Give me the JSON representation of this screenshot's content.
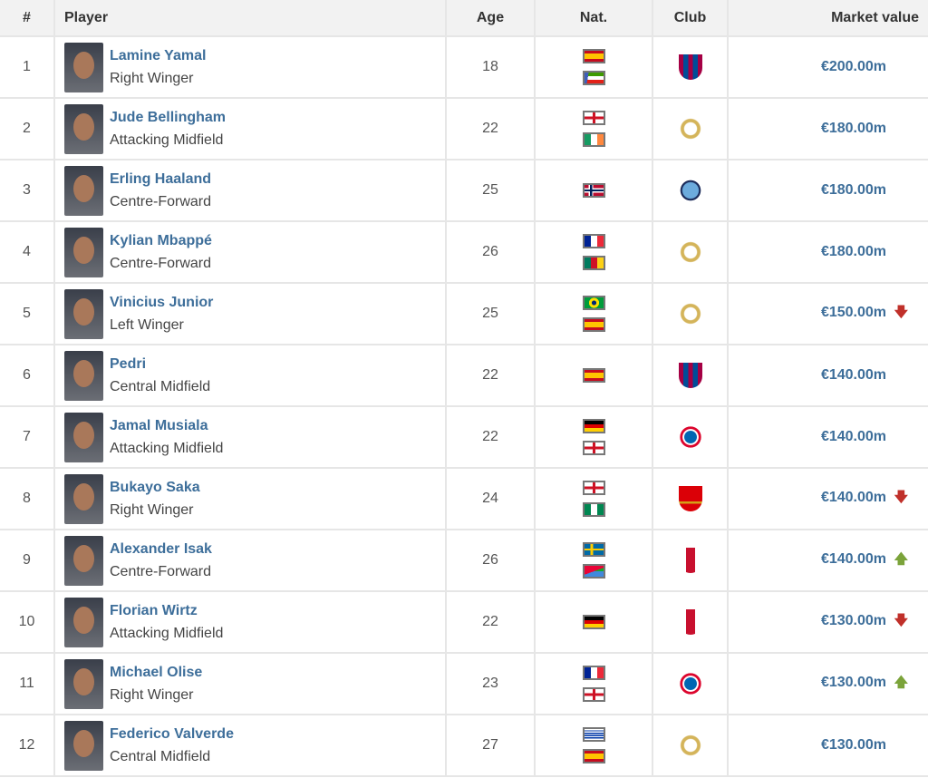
{
  "headers": {
    "rank": "#",
    "player": "Player",
    "age": "Age",
    "nat": "Nat.",
    "club": "Club",
    "value": "Market value"
  },
  "colors": {
    "link": "#3d6e9a",
    "down": "#c0302a",
    "up": "#7ba33a"
  },
  "rows": [
    {
      "rank": "1",
      "name": "Lamine Yamal",
      "position": "Right Winger",
      "age": "18",
      "nat": [
        "spain",
        "equatorial-guinea"
      ],
      "club": "fc-barcelona",
      "value": "€200.00m",
      "trend": ""
    },
    {
      "rank": "2",
      "name": "Jude Bellingham",
      "position": "Attacking Midfield",
      "age": "22",
      "nat": [
        "england",
        "ireland"
      ],
      "club": "real-madrid",
      "value": "€180.00m",
      "trend": ""
    },
    {
      "rank": "3",
      "name": "Erling Haaland",
      "position": "Centre-Forward",
      "age": "25",
      "nat": [
        "norway"
      ],
      "club": "manchester-city",
      "value": "€180.00m",
      "trend": ""
    },
    {
      "rank": "4",
      "name": "Kylian Mbappé",
      "position": "Centre-Forward",
      "age": "26",
      "nat": [
        "france",
        "cameroon"
      ],
      "club": "real-madrid",
      "value": "€180.00m",
      "trend": ""
    },
    {
      "rank": "5",
      "name": "Vinicius Junior",
      "position": "Left Winger",
      "age": "25",
      "nat": [
        "brazil",
        "spain"
      ],
      "club": "real-madrid",
      "value": "€150.00m",
      "trend": "down"
    },
    {
      "rank": "6",
      "name": "Pedri",
      "position": "Central Midfield",
      "age": "22",
      "nat": [
        "spain"
      ],
      "club": "fc-barcelona",
      "value": "€140.00m",
      "trend": ""
    },
    {
      "rank": "7",
      "name": "Jamal Musiala",
      "position": "Attacking Midfield",
      "age": "22",
      "nat": [
        "germany",
        "england"
      ],
      "club": "bayern-munich",
      "value": "€140.00m",
      "trend": ""
    },
    {
      "rank": "8",
      "name": "Bukayo Saka",
      "position": "Right Winger",
      "age": "24",
      "nat": [
        "england",
        "nigeria"
      ],
      "club": "arsenal",
      "value": "€140.00m",
      "trend": "down"
    },
    {
      "rank": "9",
      "name": "Alexander Isak",
      "position": "Centre-Forward",
      "age": "26",
      "nat": [
        "sweden",
        "eritrea"
      ],
      "club": "liverpool",
      "value": "€140.00m",
      "trend": "up"
    },
    {
      "rank": "10",
      "name": "Florian Wirtz",
      "position": "Attacking Midfield",
      "age": "22",
      "nat": [
        "germany"
      ],
      "club": "liverpool",
      "value": "€130.00m",
      "trend": "down"
    },
    {
      "rank": "11",
      "name": "Michael Olise",
      "position": "Right Winger",
      "age": "23",
      "nat": [
        "france",
        "england"
      ],
      "club": "bayern-munich",
      "value": "€130.00m",
      "trend": "up"
    },
    {
      "rank": "12",
      "name": "Federico Valverde",
      "position": "Central Midfield",
      "age": "27",
      "nat": [
        "uruguay",
        "spain"
      ],
      "club": "real-madrid",
      "value": "€130.00m",
      "trend": ""
    }
  ]
}
